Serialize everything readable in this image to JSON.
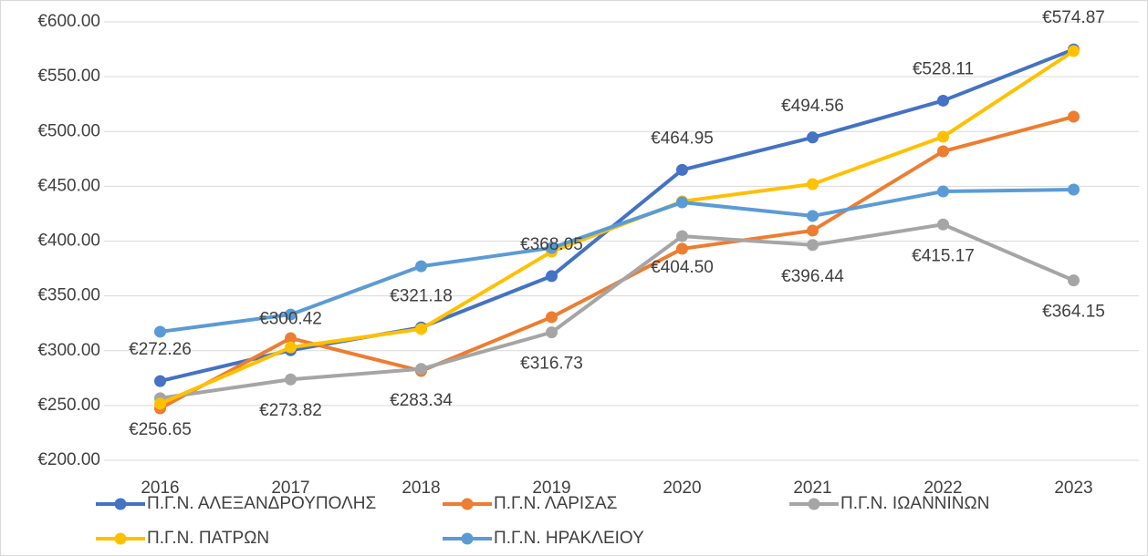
{
  "chart_data": {
    "type": "line",
    "categories": [
      "2016",
      "2017",
      "2018",
      "2019",
      "2020",
      "2021",
      "2022",
      "2023"
    ],
    "series": [
      {
        "name": "Π.Γ.Ν. ΑΛΕΞΑΝΔΡΟΥΠΟΛΗΣ",
        "color": "#4472c4",
        "values": [
          272.26,
          300.42,
          321.18,
          368.05,
          464.95,
          494.56,
          528.11,
          574.87
        ],
        "value_labels": [
          "€272.26",
          "€300.42",
          "€321.18",
          "€368.05",
          "€464.95",
          "€494.56",
          "€528.11",
          "€574.87"
        ]
      },
      {
        "name": "Π.Γ.Ν. ΛΑΡΙΣΑΣ",
        "color": "#ed7d31",
        "values": [
          247.4,
          311.4,
          281.5,
          330.6,
          393,
          409.6,
          481.9,
          513.5
        ]
      },
      {
        "name": "Π.Γ.Ν. ΙΩΑΝΝΙΝΩΝ",
        "color": "#a5a5a5",
        "values": [
          256.65,
          273.82,
          283.34,
          316.73,
          404.5,
          396.44,
          415.17,
          364.15
        ],
        "value_labels": [
          "€256.65",
          "€273.82",
          "€283.34",
          "€316.73",
          "€404.50",
          "€396.44",
          "€415.17",
          "€364.15"
        ]
      },
      {
        "name": "Π.Γ.Ν. ΠΑΤΡΩΝ",
        "color": "#ffc000",
        "values": [
          251.6,
          303,
          319.8,
          390.4,
          436.2,
          452,
          495.2,
          573.4
        ]
      },
      {
        "name": "Π.Γ.Ν. ΗΡΑΚΛΕΙΟΥ",
        "color": "#5b9bd5",
        "values": [
          317.3,
          333,
          377,
          393.8,
          435.3,
          422.9,
          445.3,
          447
        ]
      }
    ],
    "ylim": [
      200,
      600
    ],
    "yticks": [
      {
        "value": 200,
        "label": "€200.00"
      },
      {
        "value": 250,
        "label": "€250.00"
      },
      {
        "value": 300,
        "label": "€300.00"
      },
      {
        "value": 350,
        "label": "€350.00"
      },
      {
        "value": 400,
        "label": "€400.00"
      },
      {
        "value": 450,
        "label": "€450.00"
      },
      {
        "value": 500,
        "label": "€500.00"
      },
      {
        "value": 550,
        "label": "€550.00"
      },
      {
        "value": 600,
        "label": "€600.00"
      }
    ],
    "grid": true,
    "legend": "bottom"
  }
}
